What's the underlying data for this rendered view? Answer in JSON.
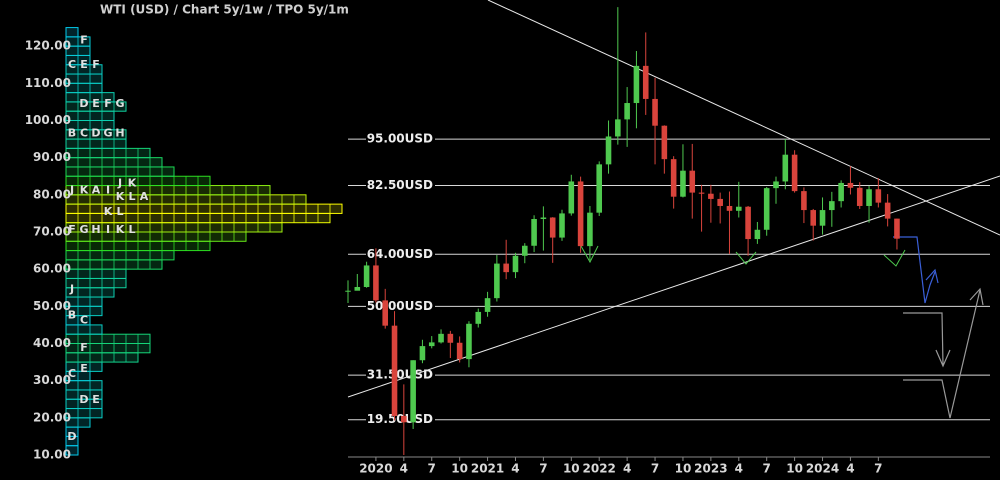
{
  "chart_data": {
    "type": "candlestick",
    "title": "WTI (USD) /  Chart 5y/1w / TPO 5y/1m",
    "x": [
      "2019-10",
      "2019-11",
      "2019-12",
      "2020-01",
      "2020-02",
      "2020-03",
      "2020-04",
      "2020-05",
      "2020-06",
      "2020-07",
      "2020-08",
      "2020-09",
      "2020-10",
      "2020-11",
      "2020-12",
      "2021-01",
      "2021-02",
      "2021-03",
      "2021-04",
      "2021-05",
      "2021-06",
      "2021-07",
      "2021-08",
      "2021-09",
      "2021-10",
      "2021-11",
      "2021-12",
      "2022-01",
      "2022-02",
      "2022-03",
      "2022-04",
      "2022-05",
      "2022-06",
      "2022-07",
      "2022-08",
      "2022-09",
      "2022-10",
      "2022-11",
      "2022-12",
      "2023-01",
      "2023-02",
      "2023-03",
      "2023-04",
      "2023-05",
      "2023-06",
      "2023-07",
      "2023-08",
      "2023-09",
      "2023-10",
      "2023-11",
      "2023-12",
      "2024-01",
      "2024-02",
      "2024-03",
      "2024-04",
      "2024-05",
      "2024-06",
      "2024-07",
      "2024-08",
      "2024-09"
    ],
    "open": [
      54.1,
      54.2,
      55.2,
      61,
      51.6,
      44.8,
      20.5,
      18.8,
      35.5,
      39.3,
      40.3,
      42.6,
      40.2,
      35.8,
      45.3,
      48.5,
      52.2,
      61.5,
      59.2,
      63.6,
      66.3,
      73.5,
      73.9,
      68.5,
      75,
      83.6,
      66.2,
      75.2,
      88.2,
      95.7,
      100.3,
      104.7,
      114.7,
      105.8,
      98.6,
      89.6,
      79.5,
      86.5,
      80.6,
      80.3,
      78.9,
      77,
      75.7,
      76.8,
      68.1,
      70.6,
      81.8,
      83.6,
      90.8,
      81,
      75.9,
      71.7,
      75.9,
      78.3,
      83.2,
      81.9,
      77,
      81.5,
      77.9,
      73.6
    ],
    "high": [
      57,
      58.7,
      62,
      65.6,
      54.7,
      48.7,
      29,
      35.5,
      41,
      42,
      43.8,
      43.4,
      41.9,
      46,
      49.4,
      53.9,
      63.8,
      67.9,
      64.4,
      67,
      74.5,
      76.9,
      74,
      76,
      85.4,
      84.9,
      77,
      89,
      100,
      130.5,
      109,
      118.7,
      123.7,
      111.5,
      98.7,
      90.4,
      93.6,
      93.7,
      82.7,
      82.7,
      80.6,
      80.9,
      83.5,
      77,
      72.7,
      82.1,
      84.9,
      95,
      92,
      82,
      76.2,
      79.3,
      80.8,
      83.9,
      87.7,
      83.4,
      82.4,
      84.5,
      80.2,
      73.6
    ],
    "low": [
      50.9,
      55,
      55,
      51,
      44,
      19.3,
      10,
      17,
      34.7,
      38.7,
      40,
      36.1,
      34.9,
      33.6,
      44.3,
      47.2,
      51.3,
      57.3,
      57.6,
      61.6,
      64.6,
      65,
      61.7,
      67.6,
      74.4,
      64.4,
      62.4,
      74.3,
      85.7,
      93.5,
      92.9,
      97.9,
      101.5,
      88.2,
      85.7,
      76.3,
      79.3,
      73.6,
      70.1,
      72.5,
      72.3,
      64.1,
      73.9,
      63.6,
      66.8,
      69,
      77.6,
      81.5,
      80.6,
      72.4,
      67.7,
      69.3,
      71.4,
      76.6,
      80.1,
      76.2,
      72.5,
      76.6,
      71.5,
      65.3
    ],
    "close": [
      54.2,
      55.2,
      61,
      51.6,
      44.8,
      20.5,
      18.8,
      35.5,
      39.3,
      40.3,
      42.6,
      40.2,
      35.8,
      45.3,
      48.5,
      52.2,
      61.5,
      59.2,
      63.6,
      66.3,
      73.5,
      73.9,
      68.5,
      75,
      83.6,
      66.2,
      75.2,
      88.2,
      95.7,
      100.3,
      104.7,
      114.7,
      105.8,
      98.6,
      89.6,
      79.5,
      86.5,
      80.6,
      80.3,
      78.9,
      77,
      75.7,
      76.8,
      68.1,
      70.6,
      81.8,
      83.6,
      90.8,
      81,
      75.9,
      71.7,
      75.9,
      78.3,
      83.2,
      81.9,
      77,
      81.5,
      77.9,
      73.6,
      68.2
    ],
    "up_color": "#4fc94f",
    "down_color": "#d9443c",
    "xlim": [
      "2019-10",
      "2025-07"
    ],
    "xticks": [
      {
        "value": "2020-01",
        "label": "2020"
      },
      {
        "value": "2020-04",
        "label": "4"
      },
      {
        "value": "2020-07",
        "label": "7"
      },
      {
        "value": "2020-10",
        "label": "10"
      },
      {
        "value": "2021-01",
        "label": "2021"
      },
      {
        "value": "2021-04",
        "label": "4"
      },
      {
        "value": "2021-07",
        "label": "7"
      },
      {
        "value": "2021-10",
        "label": "10"
      },
      {
        "value": "2022-01",
        "label": "2022"
      },
      {
        "value": "2022-04",
        "label": "4"
      },
      {
        "value": "2022-07",
        "label": "7"
      },
      {
        "value": "2022-10",
        "label": "10"
      },
      {
        "value": "2023-01",
        "label": "2023"
      },
      {
        "value": "2023-04",
        "label": "4"
      },
      {
        "value": "2023-07",
        "label": "7"
      },
      {
        "value": "2023-10",
        "label": "10"
      },
      {
        "value": "2024-01",
        "label": "2024"
      },
      {
        "value": "2024-04",
        "label": "4"
      },
      {
        "value": "2024-07",
        "label": "7"
      }
    ],
    "ylim": [
      10,
      130
    ],
    "yticks": [
      {
        "value": 10,
        "label": "10.00"
      },
      {
        "value": 20,
        "label": "20.00"
      },
      {
        "value": 30,
        "label": "30.00"
      },
      {
        "value": 40,
        "label": "40.00"
      },
      {
        "value": 50,
        "label": "50.00"
      },
      {
        "value": 60,
        "label": "60.00"
      },
      {
        "value": 70,
        "label": "70.00"
      },
      {
        "value": 80,
        "label": "80.00"
      },
      {
        "value": 90,
        "label": "90.00"
      },
      {
        "value": 100,
        "label": "100.00"
      },
      {
        "value": 110,
        "label": "110.00"
      },
      {
        "value": 120,
        "label": "120.00"
      }
    ],
    "grid": false,
    "levels": [
      {
        "value": 95,
        "label": "95.00USD"
      },
      {
        "value": 82.5,
        "label": "82.50USD"
      },
      {
        "value": 64,
        "label": "64.00USD"
      },
      {
        "value": 50,
        "label": "50.00USD"
      },
      {
        "value": 31.5,
        "label": "31.50USD"
      },
      {
        "value": 19.5,
        "label": "19.50USD"
      }
    ],
    "profile": {
      "bins": [
        10,
        12.5,
        15,
        17.5,
        20,
        22.5,
        25,
        27.5,
        30,
        32.5,
        35,
        37.5,
        40,
        42.5,
        45,
        47.5,
        50,
        52.5,
        55,
        57.5,
        60,
        62.5,
        65,
        67.5,
        70,
        72.5,
        75,
        77.5,
        80,
        82.5,
        85,
        87.5,
        90,
        92.5,
        95,
        97.5,
        100,
        102.5,
        105,
        107.5,
        110,
        112.5,
        115,
        117.5,
        120,
        122.5,
        125
      ],
      "counts": [
        1,
        1,
        1,
        2,
        3,
        3,
        3,
        3,
        2,
        3,
        6,
        7,
        7,
        3,
        2,
        3,
        3,
        4,
        5,
        5,
        8,
        9,
        12,
        15,
        18,
        22,
        23,
        20,
        17,
        12,
        9,
        8,
        7,
        5,
        5,
        4,
        4,
        5,
        4,
        3,
        3,
        3,
        2,
        2,
        2,
        1
      ],
      "colorscale": [
        "#00c8ff",
        "#22dd22",
        "#ffff00"
      ]
    },
    "tpo_rows": [
      {
        "price": 121.5,
        "letters": [
          null,
          "F"
        ]
      },
      {
        "price": 115,
        "letters": [
          "C",
          "E",
          "F"
        ]
      },
      {
        "price": 104.5,
        "letters": [
          null,
          "D",
          "E",
          "F",
          "G"
        ]
      },
      {
        "price": 96.5,
        "letters": [
          "B",
          "C",
          "D",
          "G",
          "H"
        ]
      },
      {
        "price": 83,
        "letters": [
          null,
          null,
          null,
          null,
          "J",
          "K"
        ]
      },
      {
        "price": 81.2,
        "letters": [
          "J",
          "K",
          "A",
          "I"
        ]
      },
      {
        "price": 79.4,
        "letters": [
          null,
          null,
          null,
          null,
          "K",
          "L",
          "A"
        ]
      },
      {
        "price": 75.4,
        "letters": [
          null,
          null,
          null,
          "K",
          "L"
        ]
      },
      {
        "price": 70.5,
        "letters": [
          "F",
          "G",
          "H",
          "I",
          "K",
          "L"
        ]
      },
      {
        "price": 54.5,
        "letters": [
          "J"
        ]
      },
      {
        "price": 47.5,
        "letters": [
          "B"
        ]
      },
      {
        "price": 46.2,
        "letters": [
          null,
          "C"
        ]
      },
      {
        "price": 38.8,
        "letters": [
          null,
          "F"
        ]
      },
      {
        "price": 33.2,
        "letters": [
          null,
          "E"
        ]
      },
      {
        "price": 31.8,
        "letters": [
          "C"
        ]
      },
      {
        "price": 24.8,
        "letters": [
          null,
          "D",
          "E"
        ]
      },
      {
        "price": 14.8,
        "letters": [
          "D"
        ]
      }
    ]
  }
}
